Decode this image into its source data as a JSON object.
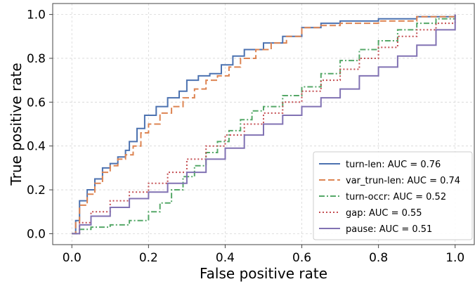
{
  "chart_data": {
    "type": "line",
    "title": "",
    "xlabel": "False positive rate",
    "ylabel": "True positive rate",
    "xlim": [
      -0.05,
      1.05
    ],
    "ylim": [
      -0.05,
      1.05
    ],
    "xticks": [
      "0.0",
      "0.2",
      "0.4",
      "0.6",
      "0.8",
      "1.0"
    ],
    "yticks": [
      "0.0",
      "0.2",
      "0.4",
      "0.6",
      "0.8",
      "1.0"
    ],
    "grid": true,
    "legend_position": "lower-right",
    "series": [
      {
        "name": "turn-len: AUC = 0.76",
        "color": "#4c72b0",
        "dash": "solid",
        "points": [
          [
            0,
            0
          ],
          [
            0.01,
            0.06
          ],
          [
            0.02,
            0.15
          ],
          [
            0.04,
            0.2
          ],
          [
            0.06,
            0.25
          ],
          [
            0.08,
            0.3
          ],
          [
            0.1,
            0.32
          ],
          [
            0.12,
            0.35
          ],
          [
            0.14,
            0.38
          ],
          [
            0.15,
            0.42
          ],
          [
            0.17,
            0.48
          ],
          [
            0.19,
            0.54
          ],
          [
            0.22,
            0.58
          ],
          [
            0.25,
            0.62
          ],
          [
            0.28,
            0.65
          ],
          [
            0.3,
            0.7
          ],
          [
            0.33,
            0.72
          ],
          [
            0.36,
            0.73
          ],
          [
            0.39,
            0.77
          ],
          [
            0.42,
            0.81
          ],
          [
            0.45,
            0.84
          ],
          [
            0.5,
            0.87
          ],
          [
            0.55,
            0.9
          ],
          [
            0.6,
            0.94
          ],
          [
            0.65,
            0.96
          ],
          [
            0.7,
            0.97
          ],
          [
            0.8,
            0.98
          ],
          [
            0.9,
            0.99
          ],
          [
            1.0,
            1.0
          ]
        ]
      },
      {
        "name": "var_trun-len: AUC = 0.74",
        "color": "#dd8452",
        "dash": "dashed",
        "points": [
          [
            0,
            0
          ],
          [
            0.01,
            0.05
          ],
          [
            0.02,
            0.13
          ],
          [
            0.04,
            0.18
          ],
          [
            0.06,
            0.23
          ],
          [
            0.08,
            0.28
          ],
          [
            0.1,
            0.31
          ],
          [
            0.12,
            0.34
          ],
          [
            0.14,
            0.36
          ],
          [
            0.16,
            0.4
          ],
          [
            0.18,
            0.46
          ],
          [
            0.2,
            0.5
          ],
          [
            0.23,
            0.55
          ],
          [
            0.26,
            0.58
          ],
          [
            0.29,
            0.62
          ],
          [
            0.32,
            0.66
          ],
          [
            0.35,
            0.7
          ],
          [
            0.38,
            0.72
          ],
          [
            0.41,
            0.76
          ],
          [
            0.44,
            0.8
          ],
          [
            0.48,
            0.84
          ],
          [
            0.52,
            0.87
          ],
          [
            0.56,
            0.9
          ],
          [
            0.6,
            0.94
          ],
          [
            0.65,
            0.95
          ],
          [
            0.7,
            0.96
          ],
          [
            0.8,
            0.97
          ],
          [
            0.9,
            0.99
          ],
          [
            1.0,
            1.0
          ]
        ]
      },
      {
        "name": "turn-occr: AUC = 0.52",
        "color": "#55a868",
        "dash": "dashdot",
        "points": [
          [
            0,
            0
          ],
          [
            0.02,
            0.02
          ],
          [
            0.05,
            0.03
          ],
          [
            0.1,
            0.04
          ],
          [
            0.15,
            0.06
          ],
          [
            0.2,
            0.1
          ],
          [
            0.23,
            0.14
          ],
          [
            0.26,
            0.2
          ],
          [
            0.29,
            0.26
          ],
          [
            0.32,
            0.31
          ],
          [
            0.35,
            0.37
          ],
          [
            0.38,
            0.42
          ],
          [
            0.41,
            0.47
          ],
          [
            0.44,
            0.52
          ],
          [
            0.47,
            0.56
          ],
          [
            0.5,
            0.58
          ],
          [
            0.55,
            0.63
          ],
          [
            0.6,
            0.67
          ],
          [
            0.65,
            0.73
          ],
          [
            0.7,
            0.79
          ],
          [
            0.75,
            0.84
          ],
          [
            0.8,
            0.88
          ],
          [
            0.85,
            0.93
          ],
          [
            0.9,
            0.96
          ],
          [
            0.95,
            0.98
          ],
          [
            1.0,
            1.0
          ]
        ]
      },
      {
        "name": "gap: AUC = 0.55",
        "color": "#c44e52",
        "dash": "dotted",
        "points": [
          [
            0,
            0
          ],
          [
            0.02,
            0.05
          ],
          [
            0.05,
            0.1
          ],
          [
            0.1,
            0.15
          ],
          [
            0.15,
            0.19
          ],
          [
            0.2,
            0.23
          ],
          [
            0.25,
            0.28
          ],
          [
            0.3,
            0.34
          ],
          [
            0.35,
            0.4
          ],
          [
            0.4,
            0.45
          ],
          [
            0.45,
            0.5
          ],
          [
            0.5,
            0.55
          ],
          [
            0.55,
            0.6
          ],
          [
            0.6,
            0.65
          ],
          [
            0.65,
            0.7
          ],
          [
            0.7,
            0.75
          ],
          [
            0.75,
            0.8
          ],
          [
            0.8,
            0.85
          ],
          [
            0.85,
            0.9
          ],
          [
            0.9,
            0.93
          ],
          [
            0.95,
            0.96
          ],
          [
            1.0,
            1.0
          ]
        ]
      },
      {
        "name": "pause: AUC = 0.51",
        "color": "#8172b3",
        "dash": "solid",
        "points": [
          [
            0,
            0
          ],
          [
            0.02,
            0.04
          ],
          [
            0.05,
            0.08
          ],
          [
            0.1,
            0.12
          ],
          [
            0.15,
            0.16
          ],
          [
            0.2,
            0.19
          ],
          [
            0.25,
            0.23
          ],
          [
            0.3,
            0.28
          ],
          [
            0.35,
            0.34
          ],
          [
            0.4,
            0.39
          ],
          [
            0.45,
            0.45
          ],
          [
            0.5,
            0.5
          ],
          [
            0.55,
            0.54
          ],
          [
            0.6,
            0.58
          ],
          [
            0.65,
            0.62
          ],
          [
            0.7,
            0.66
          ],
          [
            0.75,
            0.72
          ],
          [
            0.8,
            0.76
          ],
          [
            0.85,
            0.81
          ],
          [
            0.9,
            0.86
          ],
          [
            0.95,
            0.93
          ],
          [
            1.0,
            1.0
          ]
        ]
      }
    ]
  }
}
